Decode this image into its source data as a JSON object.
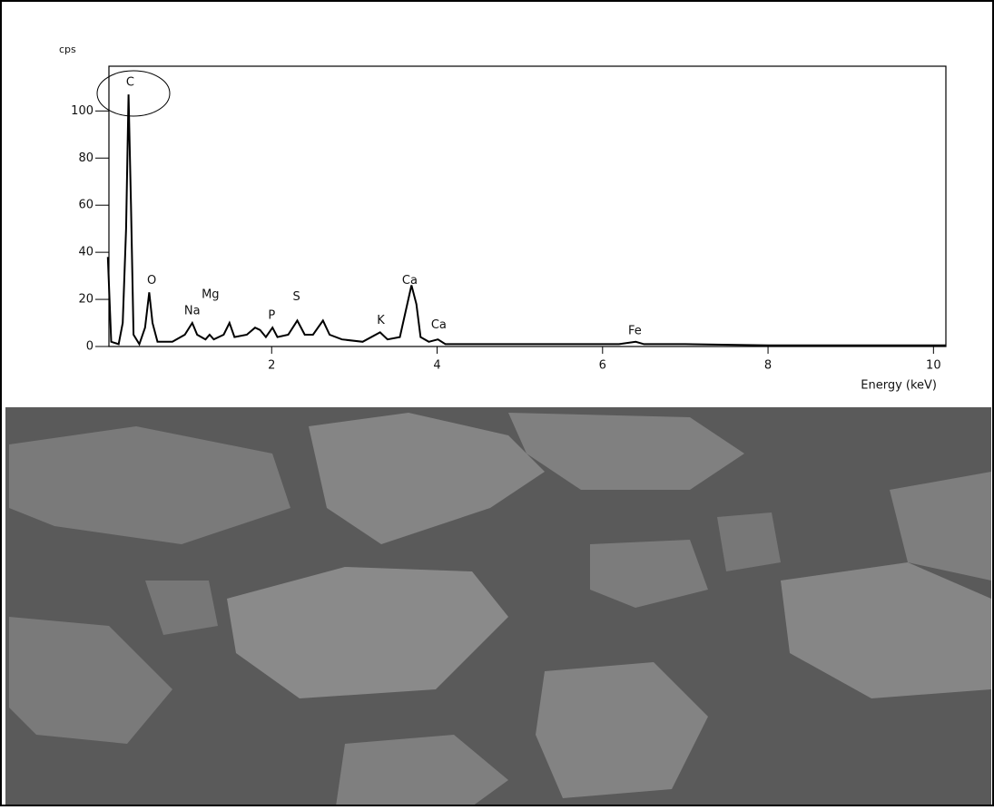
{
  "chart_data": {
    "type": "line",
    "y_label": "cps",
    "x_label": "Energy (keV)",
    "color": "#000000",
    "xlim": [
      0,
      10.15
    ],
    "ylim": [
      0,
      119
    ],
    "xticks": [
      2,
      4,
      6,
      8,
      10
    ],
    "yticks": [
      0,
      20,
      40,
      60,
      80,
      100
    ],
    "x": [
      0.02,
      0.06,
      0.15,
      0.2,
      0.24,
      0.27,
      0.3,
      0.33,
      0.4,
      0.47,
      0.52,
      0.56,
      0.62,
      0.8,
      0.95,
      1.04,
      1.1,
      1.2,
      1.25,
      1.3,
      1.42,
      1.49,
      1.55,
      1.7,
      1.8,
      1.86,
      1.93,
      2.01,
      2.07,
      2.2,
      2.31,
      2.4,
      2.5,
      2.62,
      2.7,
      2.85,
      3.1,
      3.31,
      3.4,
      3.55,
      3.69,
      3.75,
      3.8,
      3.9,
      4.01,
      4.1,
      4.5,
      5,
      5.5,
      6,
      6.2,
      6.4,
      6.5,
      7,
      8,
      9,
      10,
      10.15
    ],
    "values": [
      38,
      2,
      1,
      10,
      50,
      107,
      60,
      5,
      1,
      8,
      23,
      10,
      2,
      2,
      5,
      10,
      5,
      3,
      5,
      3,
      5,
      10,
      4,
      5,
      8,
      7,
      4,
      8,
      4,
      5,
      11,
      5,
      5,
      11,
      5,
      3,
      2,
      6,
      3,
      4,
      26,
      18,
      4,
      2,
      3,
      1,
      1,
      1,
      1,
      1,
      1,
      2,
      1,
      1,
      0.5,
      0.5,
      0.5,
      0.5
    ],
    "annotations": [
      {
        "text": "C",
        "x": 0.29,
        "y": 112
      },
      {
        "text": "O",
        "x": 0.55,
        "y": 28
      },
      {
        "text": "Mg",
        "x": 1.26,
        "y": 22
      },
      {
        "text": "Na",
        "x": 1.04,
        "y": 15
      },
      {
        "text": "P",
        "x": 2.0,
        "y": 13
      },
      {
        "text": "S",
        "x": 2.3,
        "y": 21
      },
      {
        "text": "K",
        "x": 3.32,
        "y": 11
      },
      {
        "text": "Ca",
        "x": 3.67,
        "y": 28
      },
      {
        "text": "Ca",
        "x": 4.02,
        "y": 9
      },
      {
        "text": "Fe",
        "x": 6.39,
        "y": 6.6
      }
    ]
  }
}
